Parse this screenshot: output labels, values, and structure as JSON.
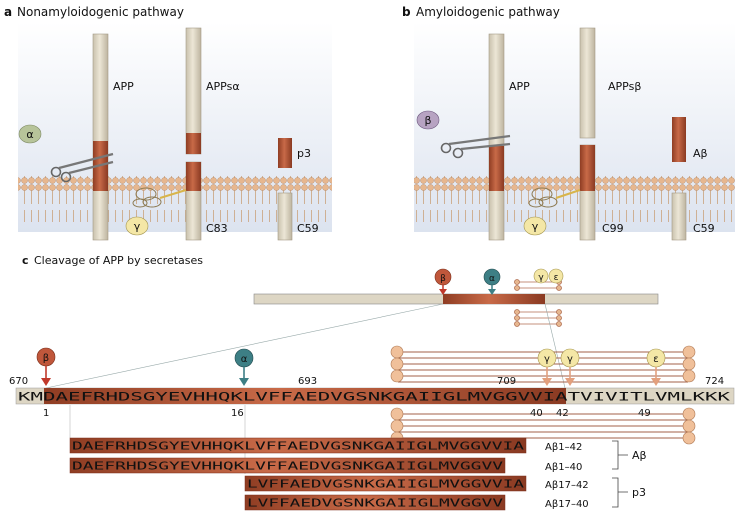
{
  "panel_a": {
    "letter": "a",
    "title": "Nonamyloidogenic pathway",
    "app_label": "APP",
    "appsa_label": "APPsα",
    "p3_label": "p3",
    "c83_label": "C83",
    "c59_label": "C59",
    "alpha_symbol": "α",
    "gamma_symbol": "γ"
  },
  "panel_b": {
    "letter": "b",
    "title": "Amyloidogenic pathway",
    "app_label": "APP",
    "appsb_label": "APPsβ",
    "abeta_label": "Aβ",
    "c99_label": "C99",
    "c59_label": "C59",
    "beta_symbol": "β",
    "gamma_symbol": "γ"
  },
  "panel_c": {
    "letter": "c",
    "title": "Cleavage of APP by secretases",
    "top_markers": {
      "beta": "β",
      "alpha": "α",
      "gamma": "γ",
      "epsilon": "ε"
    },
    "markers": {
      "beta": "β",
      "alpha": "α",
      "gamma1": "γ",
      "gamma2": "γ",
      "epsilon": "ε"
    },
    "numbers": {
      "n670": "670",
      "n693": "693",
      "n709": "709",
      "n724": "724",
      "n1": "1",
      "n16": "16",
      "n40": "40",
      "n42": "42",
      "n49": "49"
    },
    "main_sequence": "KMDAEFRHDSGYEVHHQKLVFFAEDVGSNKGAIIGLMVGGVVIATVIVITLVMLKKK",
    "peptides": [
      {
        "seq": "DAEFRHDSGYEVHHQKLVFFAEDVGSNKGAIIGLMVGGVVIA",
        "label": "Aβ1–42"
      },
      {
        "seq": "DAEFRHDSGYEVHHQKLVFFAEDVGSNKGAIIGLMVGGVV",
        "label": "Aβ1–40"
      },
      {
        "seq": "LVFFAEDVGSNKGAIIGLMVGGVVIA",
        "label": "Aβ17–42"
      },
      {
        "seq": "LVFFAEDVGSNKGAIIGLMVGGVV",
        "label": "Aβ17–40"
      }
    ],
    "group_abeta": "Aβ",
    "group_p3": "p3"
  },
  "colors": {
    "rust": "#b9593a",
    "rust_dark": "#8a3a22",
    "beige": "#ddd6c4",
    "membrane": "#e8c9a4",
    "lipid_head": "#e7b78f",
    "alpha_badge": "#b7c49a",
    "beta_badge": "#b7a3c2",
    "gamma_badge": "#f4e7a6",
    "beta_arrow": "#c0392b",
    "alpha_arrow": "#3d7f85"
  }
}
